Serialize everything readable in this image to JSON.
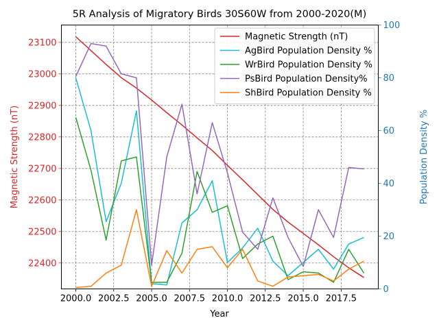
{
  "chart_data": {
    "type": "line",
    "title": "5R Analysis of Migratory Birds 30S60W from 2000-2020(M)",
    "xlabel": "Year",
    "ylabel_left": "Magnetic Strength (nT)",
    "ylabel_right": "Population Density %",
    "xlim": [
      1999.05,
      2019.95
    ],
    "xticks": [
      "2000.0",
      "2002.5",
      "2005.0",
      "2007.5",
      "2010.0",
      "2012.5",
      "2015.0",
      "2017.5"
    ],
    "xtick_values": [
      2000,
      2002.5,
      2005,
      2007.5,
      2010,
      2012.5,
      2015,
      2017.5
    ],
    "ylim_left": [
      22318,
      23155
    ],
    "yticks_left": [
      "22400",
      "22500",
      "22600",
      "22700",
      "22800",
      "22900",
      "23000",
      "23100"
    ],
    "ytick_values_left": [
      22400,
      22500,
      22600,
      22700,
      22800,
      22900,
      23000,
      23100
    ],
    "ylim_right": [
      0,
      100
    ],
    "yticks_right": [
      "0",
      "20",
      "40",
      "60",
      "80",
      "100"
    ],
    "ytick_values_right": [
      0,
      20,
      40,
      60,
      80,
      100
    ],
    "grid": true,
    "legend_position": "upper right",
    "colors": {
      "left_axis": "#d62728",
      "right_axis": "#1f77b4",
      "grid": "#808080"
    },
    "x": [
      2000,
      2001,
      2002,
      2003,
      2004,
      2005,
      2006,
      2007,
      2008,
      2009,
      2010,
      2011,
      2012,
      2013,
      2014,
      2015,
      2016,
      2017,
      2018,
      2019
    ],
    "series": [
      {
        "name": "Magnetic Strength (nT)",
        "axis": "left",
        "color": "#d62728",
        "values": [
          23118,
          23074,
          23030,
          22988,
          22955,
          22917,
          22877,
          22838,
          22797,
          22757,
          22710,
          22664,
          22617,
          22570,
          22530,
          22494,
          22458,
          22420,
          22385,
          22354
        ]
      },
      {
        "name": "AgBird Population Density %",
        "axis": "right",
        "color": "#17becf",
        "values": [
          80,
          60,
          25.5,
          40,
          67.5,
          2,
          1.5,
          25,
          30,
          41,
          10,
          15.5,
          23,
          10.5,
          5,
          10,
          15,
          7.5,
          17,
          19.5
        ]
      },
      {
        "name": "WrBird Population Density %",
        "axis": "right",
        "color": "#2ca02c",
        "values": [
          65,
          45,
          18.5,
          48.5,
          50,
          2.5,
          2.5,
          13.5,
          44.5,
          29,
          31.5,
          11.5,
          17,
          20,
          3.5,
          6.5,
          6,
          2.5,
          15,
          6
        ]
      },
      {
        "name": "PsBird Population Density%",
        "axis": "right",
        "color": "#9467bd",
        "values": [
          80.5,
          93,
          92,
          81.5,
          80,
          9,
          50,
          70,
          36,
          63,
          44,
          21.5,
          15,
          34.5,
          19.5,
          8.5,
          30,
          19.5,
          46,
          45.5
        ]
      },
      {
        "name": "ShBird Population Density %",
        "axis": "right",
        "color": "#ff7f0e",
        "values": [
          0.5,
          1,
          6,
          9,
          30,
          1,
          14.5,
          6,
          15,
          16,
          8,
          15,
          3,
          1,
          4.5,
          5,
          5.5,
          3,
          7.5,
          10.5
        ]
      }
    ]
  }
}
